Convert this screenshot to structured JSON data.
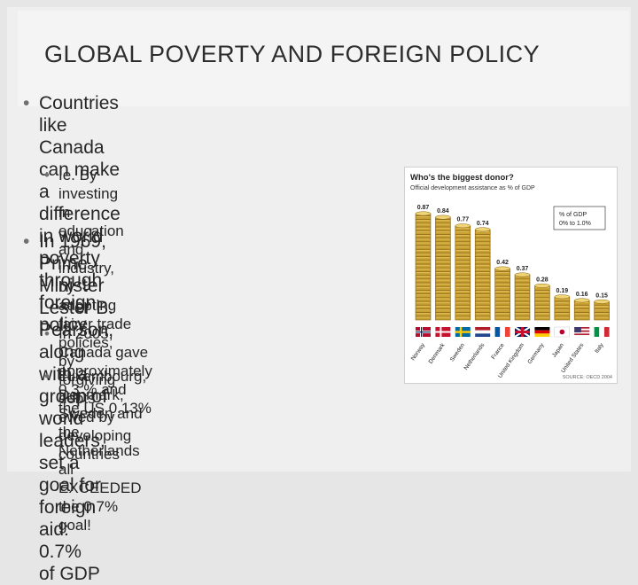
{
  "slide": {
    "title": "GLOBAL POVERTY AND FOREIGN POLICY",
    "bullets": [
      {
        "level": 1,
        "lines": [
          "Countries like Canada can make a",
          "difference in world poverty through",
          "foreign policy"
        ]
      },
      {
        "level": 2,
        "lines": [
          "Ie. By investing in education and industry, by",
          "adopting fairer trade policies, by forgiving",
          "debts owed by developing countries"
        ]
      },
      {
        "level": 1,
        "lines": [
          "In 1969, Prime Minister Lester B.",
          "Pearson, along with a group of world",
          "leaders, set a goal for foreign aid: 0.7%",
          "of GDP"
        ]
      },
      {
        "level": 2,
        "lines": [
          "In 2005, Canada gave approximately 0.3 % and",
          "the US 0.13%"
        ]
      },
      {
        "level": 2,
        "lines": [
          "Luxembourg, Denmark, Sweden and the",
          "Netherlands all EXCEEDED the 0.7% goal!"
        ]
      }
    ]
  },
  "chart_data": {
    "type": "bar",
    "title": "Who's the biggest donor?",
    "subtitle": "Official development assistance as % of GDP",
    "legend": {
      "title": "% of GDP",
      "note": "0% to 1.0%",
      "placement": "top-right"
    },
    "source": "SOURCE: OECD 2004",
    "categories": [
      "Norway",
      "Denmark",
      "Sweden",
      "Netherlands",
      "France",
      "United Kingdom",
      "Germany",
      "Japan",
      "United States",
      "Italy"
    ],
    "values": [
      0.87,
      0.84,
      0.77,
      0.74,
      0.42,
      0.37,
      0.28,
      0.19,
      0.16,
      0.15
    ],
    "value_labels": [
      "0.87",
      "0.84",
      "0.77",
      "0.74",
      "0.42",
      "0.37",
      "0.28",
      "0.19",
      "0.16",
      "0.15"
    ],
    "ylim": [
      0,
      1.0
    ],
    "colors": {
      "coin": "#c9a032",
      "coin_dark": "#8a6512",
      "coin_light": "#f0d478"
    },
    "flags": [
      "norway-flag-icon",
      "denmark-flag-icon",
      "sweden-flag-icon",
      "netherlands-flag-icon",
      "france-flag-icon",
      "uk-flag-icon",
      "germany-flag-icon",
      "japan-flag-icon",
      "usa-flag-icon",
      "italy-flag-icon"
    ]
  }
}
